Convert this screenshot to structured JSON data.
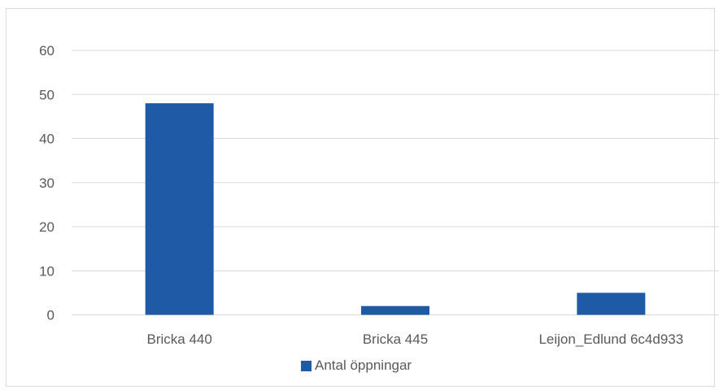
{
  "chart_data": {
    "type": "bar",
    "categories": [
      "Bricka 440",
      "Bricka 445",
      "Leijon_Edlund 6c4d933"
    ],
    "series": [
      {
        "name": "Antal öppningar",
        "values": [
          48,
          2,
          5
        ],
        "color": "#1f5aa6"
      }
    ],
    "yticks": [
      "0",
      "10",
      "20",
      "30",
      "40",
      "50",
      "60"
    ],
    "ylim": [
      0,
      60
    ],
    "grid": true,
    "legend_position": "bottom"
  }
}
